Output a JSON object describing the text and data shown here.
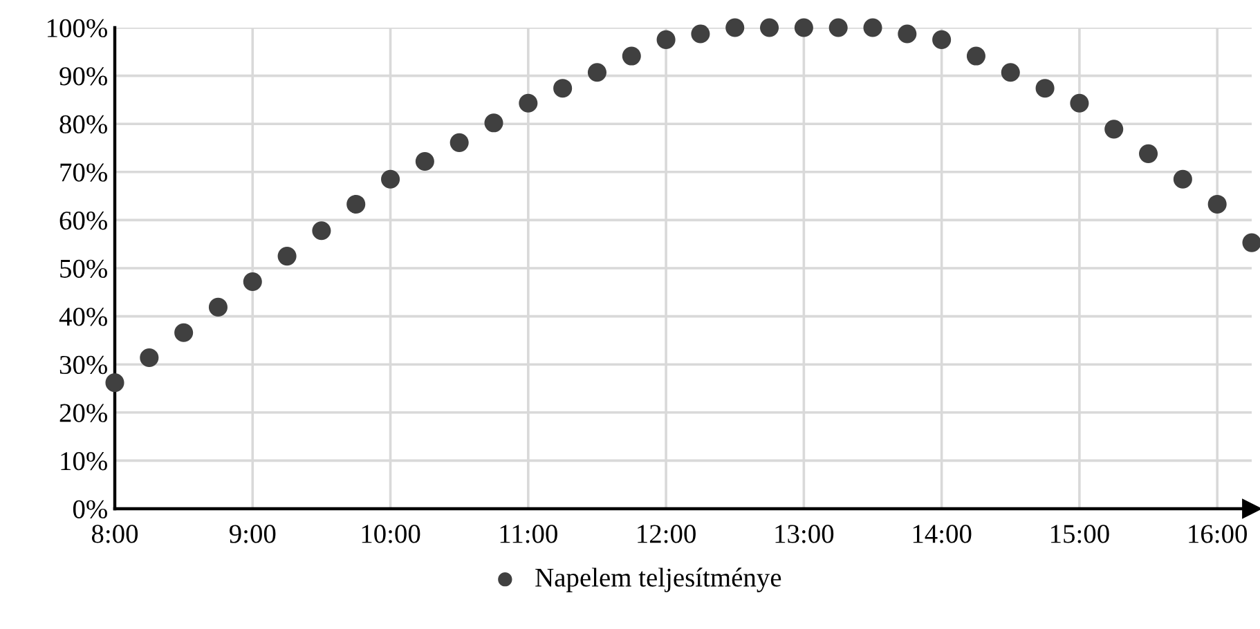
{
  "chart_data": {
    "type": "scatter",
    "x": [
      8,
      8.25,
      8.5,
      8.75,
      9,
      9.25,
      9.5,
      9.75,
      10,
      10.25,
      10.5,
      10.75,
      11,
      11.25,
      11.5,
      11.75,
      12,
      12.25,
      12.5,
      12.75,
      13,
      13.25,
      13.5,
      13.75,
      14,
      14.25,
      14.5,
      14.75,
      15,
      15.25,
      15.5,
      15.75,
      16,
      16.25
    ],
    "series": [
      {
        "name": "Napelem teljesítménye",
        "color": "#404040",
        "values": [
          26.2,
          31.4,
          36.6,
          41.9,
          47.2,
          52.5,
          57.8,
          63.3,
          68.5,
          72.2,
          76.1,
          80.2,
          84.3,
          87.4,
          90.7,
          94.1,
          97.5,
          98.7,
          100,
          100,
          100,
          100,
          100,
          98.7,
          97.5,
          94.1,
          90.7,
          87.4,
          84.3,
          78.9,
          73.8,
          68.5,
          63.3,
          55.3
        ]
      }
    ],
    "xlim": [
      8,
      16.25
    ],
    "xticks": [
      {
        "value": 8,
        "label": "8:00"
      },
      {
        "value": 9,
        "label": "9:00"
      },
      {
        "value": 10,
        "label": "10:00"
      },
      {
        "value": 11,
        "label": "11:00"
      },
      {
        "value": 12,
        "label": "12:00"
      },
      {
        "value": 13,
        "label": "13:00"
      },
      {
        "value": 14,
        "label": "14:00"
      },
      {
        "value": 15,
        "label": "15:00"
      },
      {
        "value": 16,
        "label": "16:00"
      }
    ],
    "ylim": [
      0,
      100
    ],
    "yticks": [
      {
        "value": 0,
        "label": "0%"
      },
      {
        "value": 10,
        "label": "10%"
      },
      {
        "value": 20,
        "label": "20%"
      },
      {
        "value": 30,
        "label": "30%"
      },
      {
        "value": 40,
        "label": "40%"
      },
      {
        "value": 50,
        "label": "50%"
      },
      {
        "value": 60,
        "label": "60%"
      },
      {
        "value": 70,
        "label": "70%"
      },
      {
        "value": 80,
        "label": "80%"
      },
      {
        "value": 90,
        "label": "90%"
      },
      {
        "value": 100,
        "label": "100%"
      }
    ],
    "grid": true,
    "legend": "bottom",
    "marker": "circle"
  }
}
